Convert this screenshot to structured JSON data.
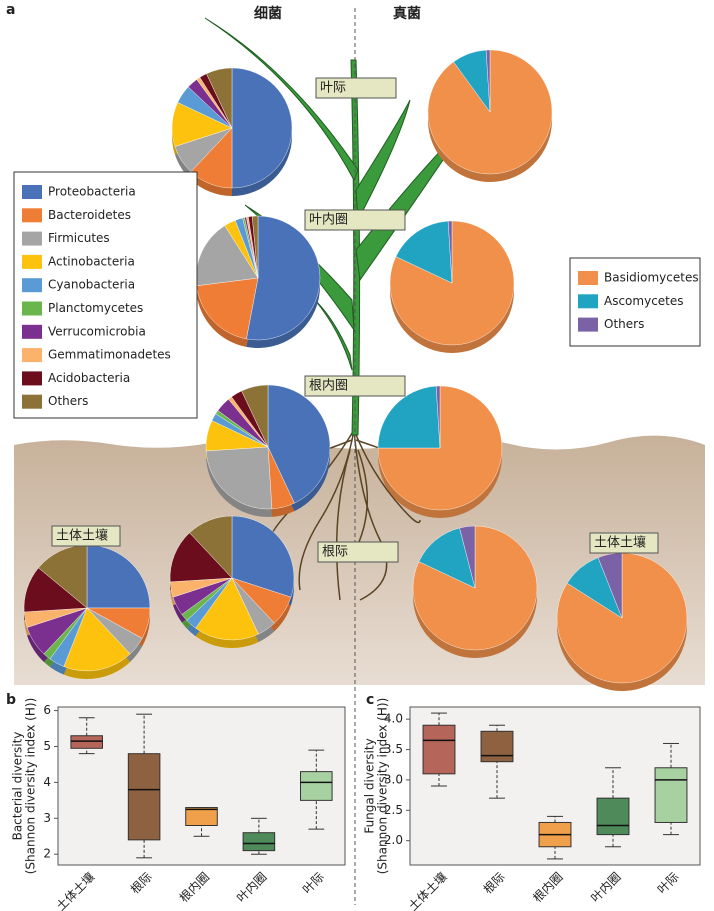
{
  "panel_labels": [
    "a",
    "b",
    "c"
  ],
  "kingdoms": [
    "细菌",
    "真菌"
  ],
  "compartment_labels": [
    "叶际",
    "叶内圈",
    "根内圈",
    "根际",
    "土体土壤",
    "土体土壤"
  ],
  "bacteria_legend": [
    {
      "name": "Proteobacteria",
      "color": "#4a72b8"
    },
    {
      "name": "Bacteroidetes",
      "color": "#ef7d35"
    },
    {
      "name": "Firmicutes",
      "color": "#a5a5a5"
    },
    {
      "name": "Actinobacteria",
      "color": "#fdc20d"
    },
    {
      "name": "Cyanobacteria",
      "color": "#5b9bd5"
    },
    {
      "name": "Planctomycetes",
      "color": "#6ab64c"
    },
    {
      "name": "Verrucomicrobia",
      "color": "#7b2f8e"
    },
    {
      "name": "Gemmatimonadetes",
      "color": "#fbb36b"
    },
    {
      "name": "Acidobacteria",
      "color": "#6b0d1c"
    },
    {
      "name": "Others",
      "color": "#8c7236"
    }
  ],
  "fungi_legend": [
    {
      "name": "Basidiomycetes",
      "color": "#f0904a"
    },
    {
      "name": "Ascomycetes",
      "color": "#20a4c2"
    },
    {
      "name": "Others",
      "color": "#7b62a6"
    }
  ],
  "chart_data": [
    {
      "type": "pie",
      "values": [
        50,
        12,
        8,
        12,
        5,
        0,
        3,
        1,
        2,
        7
      ],
      "colors": [
        "#4a72b8",
        "#ef7d35",
        "#a5a5a5",
        "#fdc20d",
        "#5b9bd5",
        "#6ab64c",
        "#7b2f8e",
        "#fbb36b",
        "#6b0d1c",
        "#8c7236"
      ]
    },
    {
      "type": "pie",
      "values": [
        53,
        20,
        18,
        3,
        2,
        0.5,
        0.5,
        0.5,
        1,
        1.5
      ],
      "colors": [
        "#4a72b8",
        "#ef7d35",
        "#a5a5a5",
        "#fdc20d",
        "#5b9bd5",
        "#6ab64c",
        "#7b2f8e",
        "#fbb36b",
        "#6b0d1c",
        "#8c7236"
      ]
    },
    {
      "type": "pie",
      "values": [
        43,
        6,
        25,
        8,
        2,
        1,
        4,
        1,
        3,
        7
      ],
      "colors": [
        "#4a72b8",
        "#ef7d35",
        "#a5a5a5",
        "#fdc20d",
        "#5b9bd5",
        "#6ab64c",
        "#7b2f8e",
        "#fbb36b",
        "#6b0d1c",
        "#8c7236"
      ]
    },
    {
      "type": "pie",
      "values": [
        30,
        8,
        5,
        17,
        3,
        2,
        5,
        4,
        14,
        12
      ],
      "colors": [
        "#4a72b8",
        "#ef7d35",
        "#a5a5a5",
        "#fdc20d",
        "#5b9bd5",
        "#6ab64c",
        "#7b2f8e",
        "#fbb36b",
        "#6b0d1c",
        "#8c7236"
      ]
    },
    {
      "type": "pie",
      "values": [
        25,
        8,
        5,
        18,
        4,
        2,
        8,
        4,
        12,
        14
      ],
      "colors": [
        "#4a72b8",
        "#ef7d35",
        "#a5a5a5",
        "#fdc20d",
        "#5b9bd5",
        "#6ab64c",
        "#7b2f8e",
        "#fbb36b",
        "#6b0d1c",
        "#8c7236"
      ]
    },
    {
      "type": "pie",
      "values": [
        90,
        9,
        1
      ],
      "colors": [
        "#f0904a",
        "#20a4c2",
        "#7b62a6"
      ]
    },
    {
      "type": "pie",
      "values": [
        82,
        17,
        1
      ],
      "colors": [
        "#f0904a",
        "#20a4c2",
        "#7b62a6"
      ]
    },
    {
      "type": "pie",
      "values": [
        75,
        24,
        1
      ],
      "colors": [
        "#f0904a",
        "#20a4c2",
        "#7b62a6"
      ]
    },
    {
      "type": "pie",
      "values": [
        82,
        14,
        4
      ],
      "colors": [
        "#f0904a",
        "#20a4c2",
        "#7b62a6"
      ]
    },
    {
      "type": "pie",
      "values": [
        84,
        10,
        6
      ],
      "colors": [
        "#f0904a",
        "#20a4c2",
        "#7b62a6"
      ]
    },
    {
      "type": "box",
      "ylabel": [
        "Bacterial diversity",
        "(Shannon diversity index (H))"
      ],
      "categories": [
        "土体土壤",
        "根际",
        "根内圈",
        "叶内圈",
        "叶际"
      ],
      "colors": [
        "#b5655a",
        "#8e6140",
        "#f0a04b",
        "#4f8a5a",
        "#a8d1a2"
      ],
      "min": [
        4.8,
        1.9,
        2.5,
        2.0,
        2.7
      ],
      "q1": [
        4.95,
        2.4,
        2.8,
        2.1,
        3.5
      ],
      "median": [
        5.15,
        3.8,
        3.25,
        2.3,
        4.0
      ],
      "q3": [
        5.3,
        4.8,
        3.3,
        2.6,
        4.3
      ],
      "max": [
        5.8,
        5.9,
        3.3,
        3.0,
        4.9
      ],
      "ylim": [
        1.7,
        6.1
      ],
      "yticks": [
        2,
        3,
        4,
        5,
        6
      ]
    },
    {
      "type": "box",
      "ylabel": [
        "Fungal diversity",
        "(Shannon diversity index (H))"
      ],
      "categories": [
        "土体土壤",
        "根际",
        "根内圈",
        "叶内圈",
        "叶际"
      ],
      "colors": [
        "#b5655a",
        "#8e6140",
        "#f0a04b",
        "#4f8a5a",
        "#a8d1a2"
      ],
      "min": [
        2.9,
        2.7,
        1.7,
        1.9,
        2.1
      ],
      "q1": [
        3.1,
        3.3,
        1.9,
        2.1,
        2.3
      ],
      "median": [
        3.65,
        3.4,
        2.1,
        2.25,
        3.0
      ],
      "q3": [
        3.9,
        3.8,
        2.3,
        2.7,
        3.2
      ],
      "max": [
        4.1,
        3.9,
        2.4,
        3.2,
        3.6
      ],
      "ylim": [
        1.6,
        4.2
      ],
      "yticks": [
        {
          "value": 2,
          "label": "2.0"
        },
        {
          "value": 2.5,
          "label": "2.5"
        },
        {
          "value": 3,
          "label": "3.0"
        },
        {
          "value": 3.5,
          "label": "3.5"
        },
        {
          "value": 4,
          "label": "4.0"
        }
      ]
    }
  ]
}
